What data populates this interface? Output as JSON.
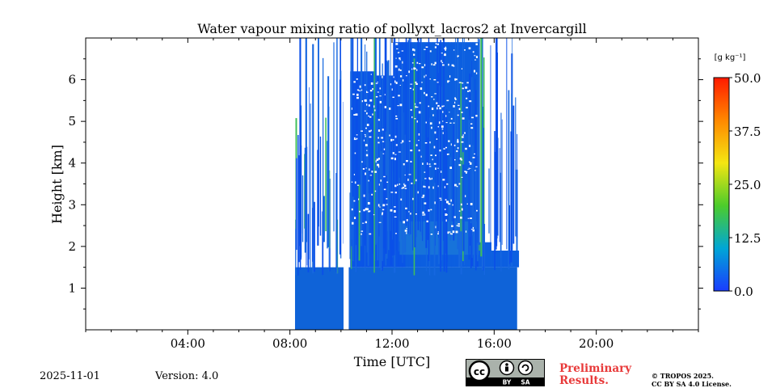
{
  "chart_data": {
    "type": "heatmap",
    "title": "Water vapour mixing ratio of pollyxt_lacros2 at Invercargill",
    "xlabel": "Time [UTC]",
    "ylabel": "Height [km]",
    "xlim_hours": [
      0,
      24
    ],
    "ylim_km": [
      0,
      7
    ],
    "x_ticks": [
      {
        "hour": 4,
        "label": "04:00"
      },
      {
        "hour": 8,
        "label": "08:00"
      },
      {
        "hour": 12,
        "label": "12:00"
      },
      {
        "hour": 16,
        "label": "16:00"
      },
      {
        "hour": 20,
        "label": "20:00"
      }
    ],
    "y_ticks": [
      {
        "km": 1,
        "label": "1"
      },
      {
        "km": 2,
        "label": "2"
      },
      {
        "km": 3,
        "label": "3"
      },
      {
        "km": 4,
        "label": "4"
      },
      {
        "km": 5,
        "label": "5"
      },
      {
        "km": 6,
        "label": "6"
      }
    ],
    "colorbar": {
      "unit_label": "[g kg⁻¹]",
      "min": 0,
      "max": 50,
      "ticks": [
        {
          "value": 0,
          "label": "0.0"
        },
        {
          "value": 12.5,
          "label": "12.5"
        },
        {
          "value": 25,
          "label": "25.0"
        },
        {
          "value": 37.5,
          "label": "37.5"
        },
        {
          "value": 50,
          "label": "50.0"
        }
      ],
      "colors": [
        "#1a3cff",
        "#00a6d6",
        "#4ccc2b",
        "#f4e612",
        "#ff8800",
        "#ff1a00"
      ]
    },
    "data_windows": [
      {
        "start_hour": 8.2,
        "end_hour": 10.1
      },
      {
        "start_hour": 10.3,
        "end_hour": 16.9
      }
    ],
    "data_gap": {
      "start_hour": 10.1,
      "end_hour": 10.3
    },
    "value_range_observed": [
      2,
      8
    ]
  },
  "footer": {
    "date": "2025-11-01",
    "version": "Version: 4.0",
    "preliminary_line1": "Preliminary",
    "preliminary_line2": "Results.",
    "copyright_line1": "© TROPOS 2025.",
    "copyright_line2": "CC BY SA 4.0 License.",
    "license_by": "BY",
    "license_sa": "SA"
  }
}
